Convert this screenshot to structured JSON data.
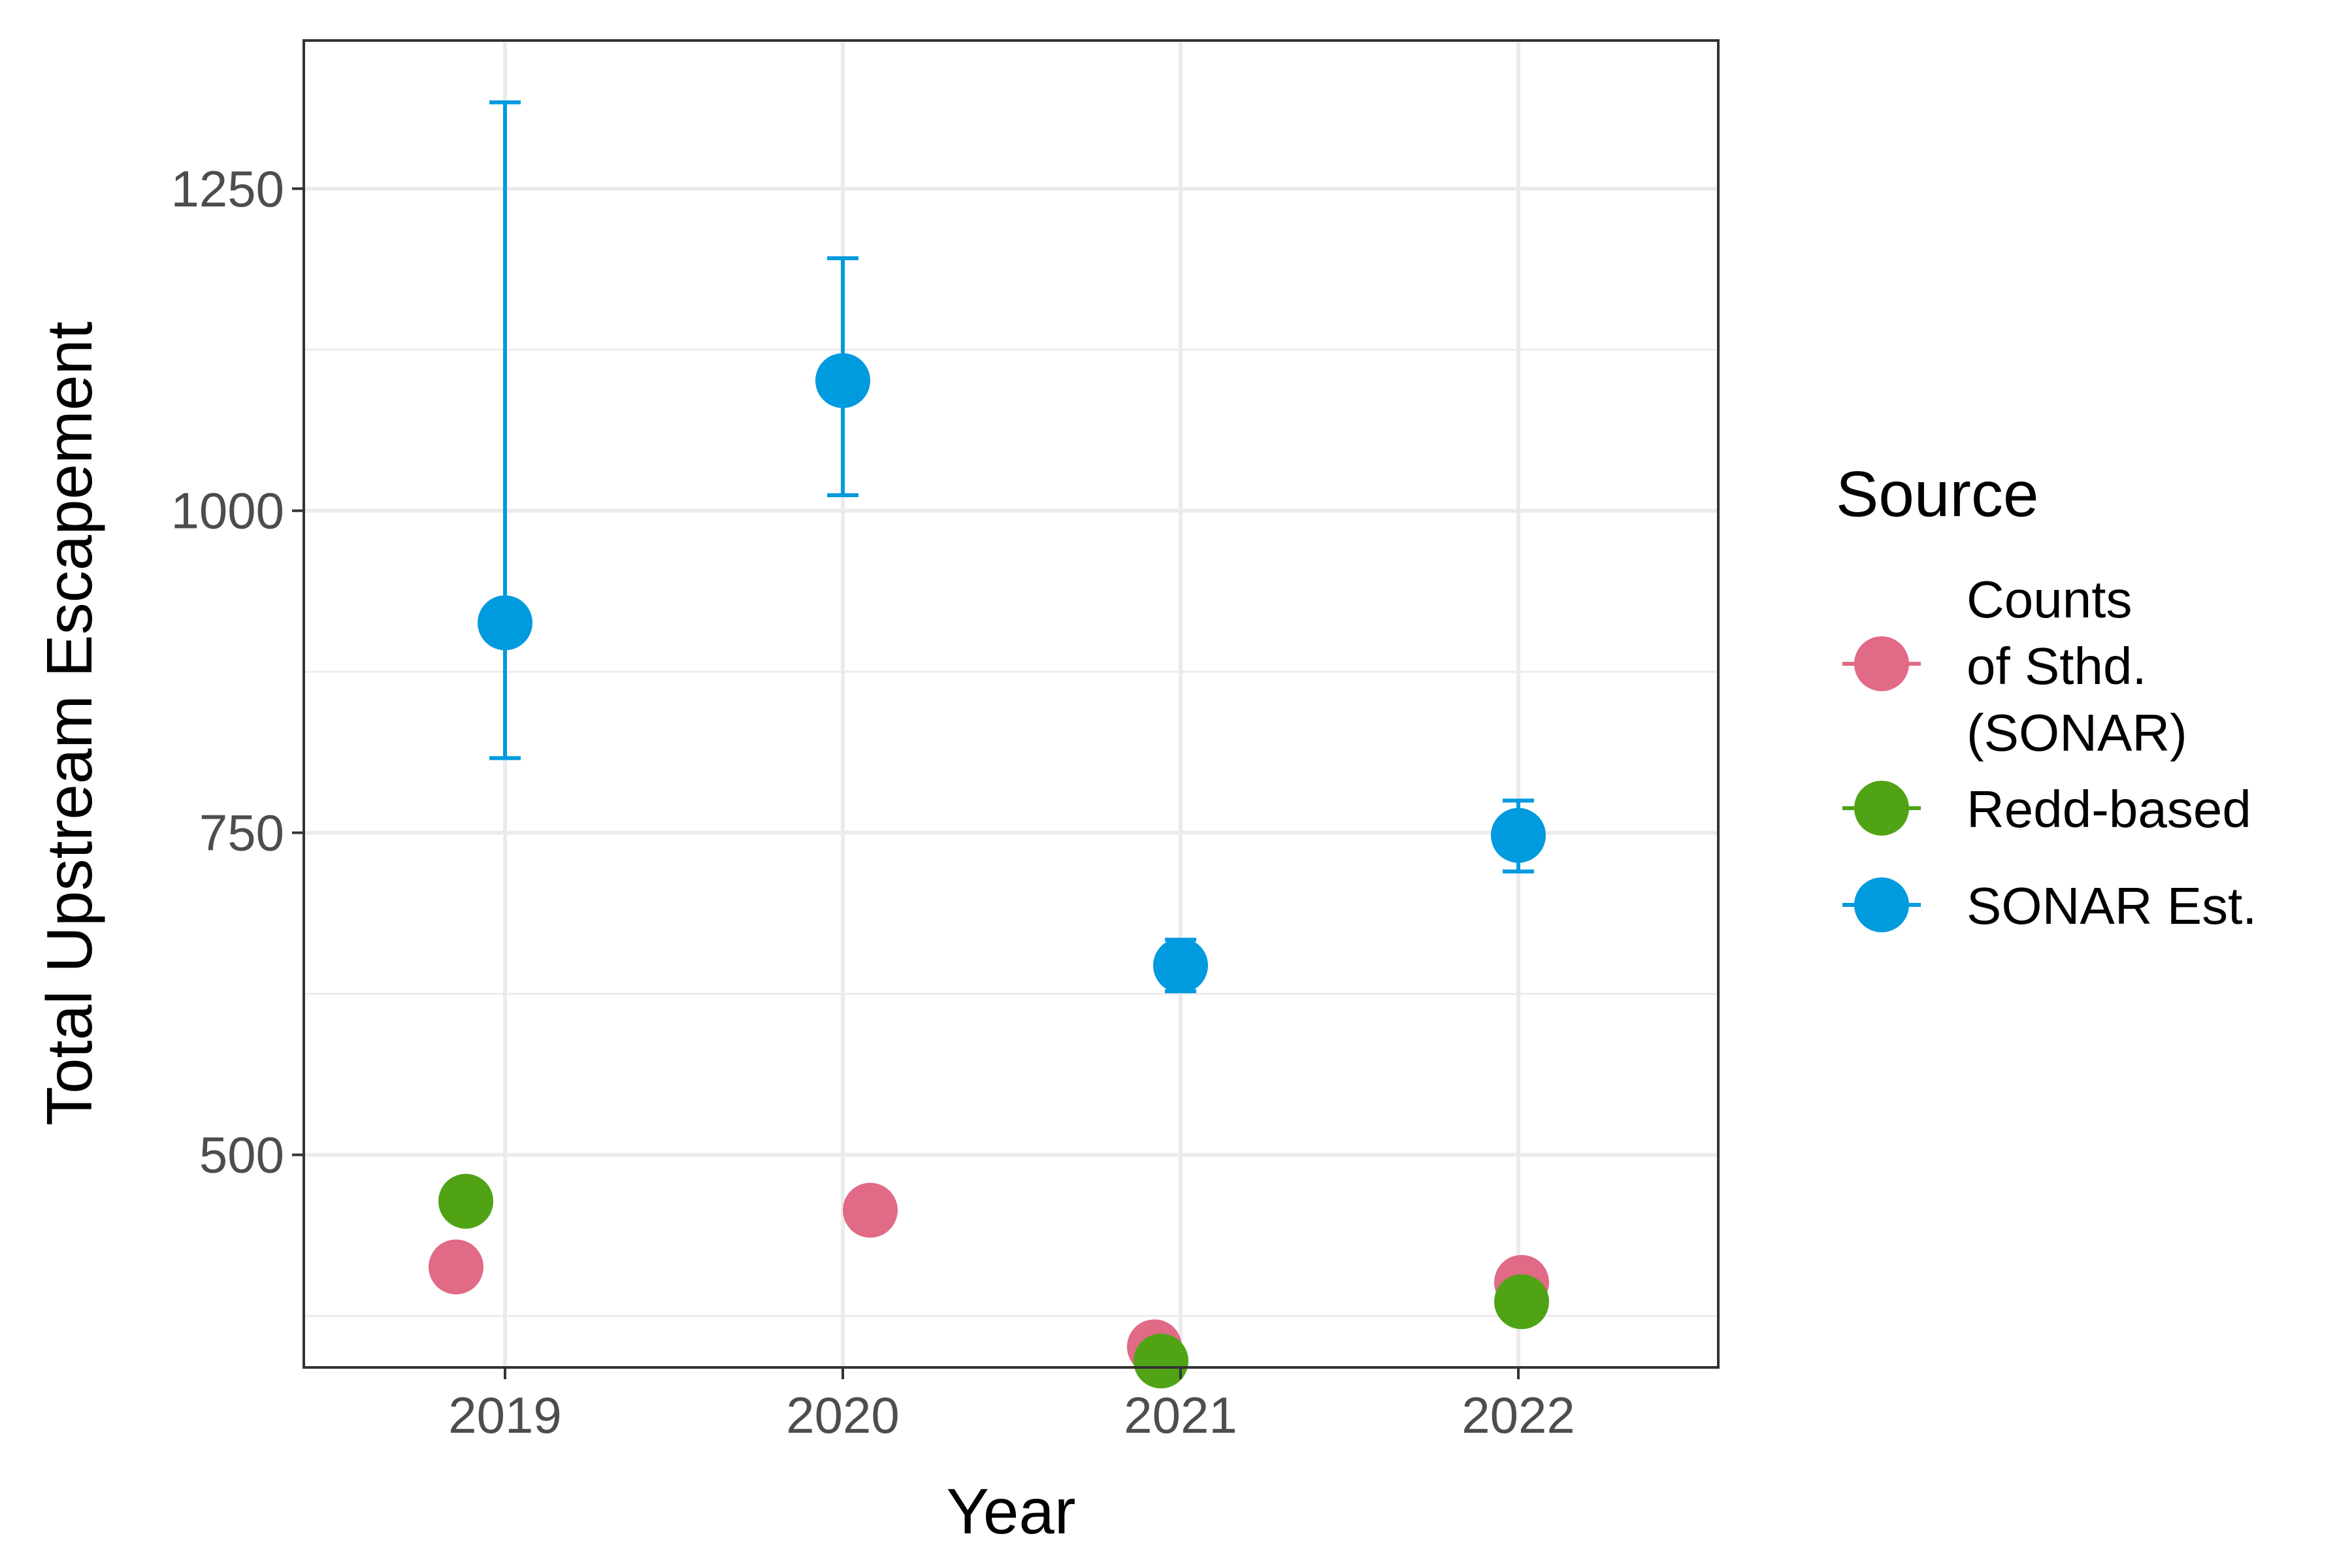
{
  "chart_data": {
    "type": "scatter",
    "title": "",
    "xlabel": "Year",
    "ylabel": "Total Upstream Escapement",
    "x_categories": [
      "2019",
      "2020",
      "2021",
      "2022"
    ],
    "ylim": [
      335,
      1365
    ],
    "y_ticks": [
      500,
      750,
      1000,
      1250
    ],
    "grid": true,
    "legend": {
      "title": "Source",
      "placement": "right",
      "entries": [
        {
          "lines": [
            "Counts",
            "of Sthd.",
            "(SONAR)"
          ],
          "color": "#E16A86"
        },
        {
          "lines": [
            "Redd-based"
          ],
          "color": "#50A315"
        },
        {
          "lines": [
            "SONAR Est."
          ],
          "color": "#009ADE"
        }
      ]
    },
    "series": [
      {
        "name": "Counts of Sthd. (SONAR)",
        "color": "#E16A86",
        "points": [
          {
            "x": "2019",
            "y": 413
          },
          {
            "x": "2020",
            "y": 457
          },
          {
            "x": "2021",
            "y": 351
          },
          {
            "x": "2022",
            "y": 401
          }
        ]
      },
      {
        "name": "Redd-based",
        "color": "#50A315",
        "points": [
          {
            "x": "2019",
            "y": 464
          },
          {
            "x": "2020",
            "y": null
          },
          {
            "x": "2021",
            "y": 340
          },
          {
            "x": "2022",
            "y": 386
          }
        ]
      },
      {
        "name": "SONAR Est.",
        "color": "#009ADE",
        "points": [
          {
            "x": "2019",
            "y": 913,
            "ymin": 808,
            "ymax": 1317
          },
          {
            "x": "2020",
            "y": 1101,
            "ymin": 1012,
            "ymax": 1196
          },
          {
            "x": "2021",
            "y": 647,
            "ymin": 627,
            "ymax": 667
          },
          {
            "x": "2022",
            "y": 748,
            "ymin": 720,
            "ymax": 775
          }
        ]
      }
    ]
  }
}
